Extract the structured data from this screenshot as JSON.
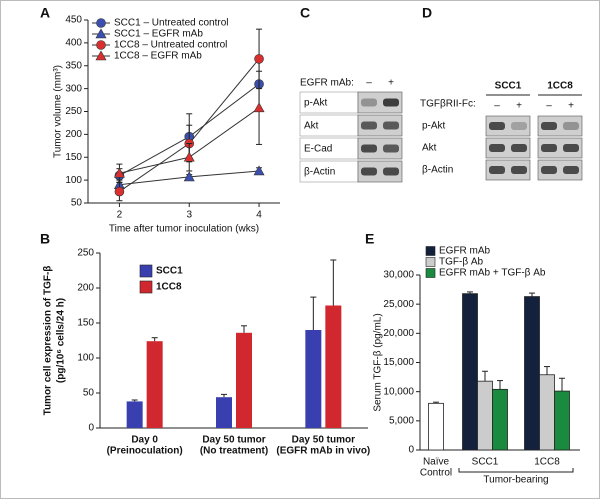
{
  "chart_data": [
    {
      "type": "line",
      "panel_label": "A",
      "xlabel": "Time after tumor inoculation (wks)",
      "ylabel": "Tumor volume (mm³)",
      "x": [
        2,
        3,
        4
      ],
      "xlim": [
        1.55,
        4.3
      ],
      "xticks": [
        2,
        3,
        4
      ],
      "ylim": [
        50,
        450
      ],
      "yticks": [
        50,
        100,
        150,
        200,
        250,
        300,
        350,
        400,
        450
      ],
      "legend": "upper left",
      "series": [
        {
          "name": "SCC1 – Untreated control",
          "color": "#3b4fb0",
          "marker": "circle",
          "values": [
            110,
            195,
            310
          ],
          "errors": [
            15,
            50,
            60
          ]
        },
        {
          "name": "SCC1 – EGFR mAb",
          "color": "#3b4fb0",
          "marker": "triangle",
          "values": [
            90,
            107,
            120
          ],
          "errors": [
            10,
            5,
            7
          ]
        },
        {
          "name": "1CC8 – Untreated control",
          "color": "#d9302f",
          "marker": "circle",
          "values": [
            75,
            180,
            365
          ],
          "errors": [
            20,
            40,
            65
          ]
        },
        {
          "name": "1CC8 – EGFR mAb",
          "color": "#d9302f",
          "marker": "triangle",
          "values": [
            115,
            150,
            258
          ],
          "errors": [
            20,
            30,
            80
          ]
        }
      ]
    },
    {
      "type": "bar",
      "panel_label": "B",
      "ylabel": [
        "Tumor cell expression of TGF-β",
        "(pg/10⁶ cells/24 h)"
      ],
      "categories": [
        [
          "Day 0",
          "(Preinoculation)"
        ],
        [
          "Day 50 tumor",
          "(No treatment)"
        ],
        [
          "Day 50 tumor",
          "(EGFR mAb in vivo)"
        ]
      ],
      "ylim": [
        0,
        250
      ],
      "yticks": [
        0,
        50,
        100,
        150,
        200,
        250
      ],
      "legend": "upper left",
      "series": [
        {
          "name": "SCC1",
          "color": "#3a3fb0",
          "values": [
            38,
            44,
            140
          ],
          "errors": [
            2,
            4,
            47
          ]
        },
        {
          "name": "1CC8",
          "color": "#d0282e",
          "values": [
            124,
            136,
            175
          ],
          "errors": [
            5,
            10,
            65
          ]
        }
      ]
    },
    {
      "type": "bar",
      "panel_label": "E",
      "ylabel": "Serum TGF-β (pg/mL)",
      "categories": [
        [
          "Naïve",
          "Control"
        ],
        [
          "SCC1"
        ],
        [
          "1CC8"
        ]
      ],
      "group_label": "Tumor-bearing",
      "ylim": [
        0,
        30000
      ],
      "yticks": [
        {
          "value": 0,
          "label": "0"
        },
        {
          "value": 5000,
          "label": "5,000"
        },
        {
          "value": 10000,
          "label": "10,000"
        },
        {
          "value": 15000,
          "label": "15,000"
        },
        {
          "value": 20000,
          "label": "20,000"
        },
        {
          "value": 25000,
          "label": "25,000"
        },
        {
          "value": 30000,
          "label": "30,000"
        }
      ],
      "legend": "upper left",
      "series": [
        {
          "name": "EGFR mAb",
          "color": "#14213d",
          "values": [
            null,
            26800,
            26300
          ],
          "errors": [
            null,
            300,
            600
          ]
        },
        {
          "name": "TGF-β Ab",
          "color": "#cccccc",
          "values": [
            null,
            11800,
            12900
          ],
          "errors": [
            null,
            1700,
            1400
          ]
        },
        {
          "name": "EGFR mAb + TGF-β Ab",
          "color": "#1a8a3e",
          "values": [
            null,
            10400,
            10100
          ],
          "errors": [
            null,
            1500,
            2200
          ]
        },
        {
          "color": "#ffffff",
          "values": [
            8000,
            null,
            null
          ],
          "errors": [
            200,
            null,
            null
          ]
        }
      ]
    }
  ],
  "blot_c": {
    "panel_label": "C",
    "treatment_label": "EGFR mAb:",
    "lanes": [
      "–",
      "+"
    ],
    "rows": [
      "p-Akt",
      "Akt",
      "E-Cad",
      "β-Actin"
    ]
  },
  "blot_d": {
    "panel_label": "D",
    "groups": [
      "SCC1",
      "1CC8"
    ],
    "treatment_label": "TGFβRII-Fc:",
    "lanes": [
      "–",
      "+",
      "–",
      "+"
    ],
    "rows": [
      "p-Akt",
      "Akt",
      "β-Actin"
    ]
  }
}
